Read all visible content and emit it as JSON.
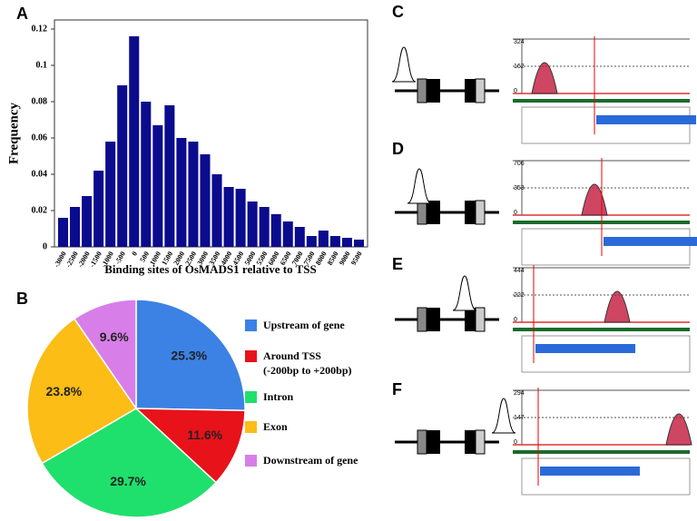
{
  "chart_data": [
    {
      "type": "bar",
      "xlabel": "Binding sites of OsMADS1 relative to TSS",
      "ylabel": "Frequency",
      "color": "#0b0b8e",
      "categories": [
        "-3000",
        "-2500",
        "-2000",
        "-1500",
        "-1000",
        "-500",
        "0",
        "500",
        "1000",
        "1500",
        "2000",
        "2500",
        "3000",
        "3500",
        "4000",
        "4500",
        "5000",
        "5500",
        "6000",
        "6500",
        "7000",
        "7500",
        "8000",
        "8500",
        "9000",
        "9500"
      ],
      "values": [
        0.016,
        0.022,
        0.028,
        0.042,
        0.058,
        0.089,
        0.116,
        0.08,
        0.067,
        0.078,
        0.06,
        0.058,
        0.051,
        0.04,
        0.033,
        0.032,
        0.025,
        0.022,
        0.018,
        0.014,
        0.011,
        0.006,
        0.009,
        0.006,
        0.005,
        0.004
      ],
      "ylim": [
        0,
        0.125
      ],
      "yticks": [
        0,
        0.02,
        0.04,
        0.06,
        0.08,
        0.1,
        0.12
      ]
    },
    {
      "type": "pie",
      "series": [
        {
          "name": "Upstream of gene",
          "color": "#3b82e4",
          "value": 25.3,
          "value_label": "25.3%"
        },
        {
          "name": "Around TSS\n(-200bp to +200bp)",
          "color": "#e8121a",
          "value": 11.6,
          "value_label": "11.6%"
        },
        {
          "name": "Intron",
          "color": "#1fe06c",
          "value": 29.7,
          "value_label": "29.7%"
        },
        {
          "name": "Exon",
          "color": "#fbbd16",
          "value": 23.8,
          "value_label": "23.8%"
        },
        {
          "name": "Downstream of gene",
          "color": "#d87ee9",
          "value": 9.6,
          "value_label": "9.6%"
        }
      ]
    }
  ],
  "panel_labels": [
    "A",
    "B",
    "C",
    "D",
    "E",
    "F"
  ],
  "tracks": [
    {
      "scale": [
        "324",
        "162",
        "0"
      ]
    },
    {
      "scale": [
        "706",
        "353",
        "0"
      ]
    },
    {
      "scale": [
        "444",
        "222",
        "0"
      ]
    },
    {
      "scale": [
        "294",
        "147",
        "0"
      ]
    }
  ]
}
